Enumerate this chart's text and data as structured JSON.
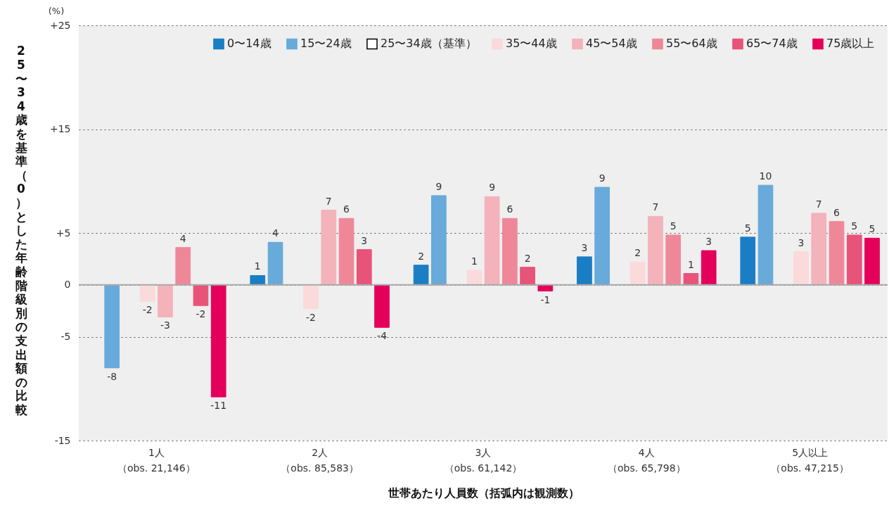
{
  "chart_data": {
    "type": "bar",
    "ylabel": "25〜34歳を基準（0）とした年齢階級別の支出額の比較",
    "xlabel": "世帯あたり人員数（括弧内は観測数）",
    "annotations": [
      "(%)"
    ],
    "categories": [
      "1人（obs. 21,146）",
      "2人（obs. 85,583）",
      "3人（obs. 61,142）",
      "4人（obs. 65,798）",
      "5人以上（obs. 47,215）"
    ],
    "ylim": [
      -15,
      25
    ],
    "yticks": [
      {
        "value": 25,
        "label": "+25"
      },
      {
        "value": 15,
        "label": "+15"
      },
      {
        "value": 5,
        "label": "+5"
      },
      0,
      -5,
      -15
    ],
    "grid": "y",
    "legend": "top right",
    "ref_lines": [
      {
        "axis": "y",
        "value": 0,
        "color": "#aaaaaa"
      }
    ],
    "series": [
      {
        "name": "0〜14歳",
        "color": "#1a7ec4",
        "values": [
          null,
          0.9,
          1.9,
          2.7,
          4.6
        ],
        "value_labels": [
          null,
          "1",
          "2",
          "3",
          "5"
        ]
      },
      {
        "name": "15〜24歳",
        "color": "#68aad9",
        "values": [
          -8.0,
          4.1,
          8.6,
          9.4,
          9.6
        ],
        "value_labels": [
          "-8",
          "4",
          "9",
          "9",
          "10"
        ]
      },
      {
        "name": "25〜34歳（基準）",
        "color": "#ffffff",
        "values": [
          null,
          null,
          null,
          null,
          null
        ],
        "value_labels": [
          null,
          null,
          null,
          null,
          null
        ]
      },
      {
        "name": "35〜44歳",
        "color": "#fadada",
        "values": [
          -1.6,
          -2.3,
          1.4,
          2.2,
          3.2
        ],
        "value_labels": [
          "-2",
          "-2",
          "1",
          "2",
          "3"
        ]
      },
      {
        "name": "45〜54歳",
        "color": "#f4b2bb",
        "values": [
          -3.1,
          7.2,
          8.5,
          6.6,
          6.9
        ],
        "value_labels": [
          "-3",
          "7",
          "9",
          "7",
          "7"
        ]
      },
      {
        "name": "55〜64歳",
        "color": "#ee8898",
        "values": [
          3.6,
          6.4,
          6.4,
          4.8,
          6.1
        ],
        "value_labels": [
          "4",
          "6",
          "6",
          "5",
          "6"
        ]
      },
      {
        "name": "65〜74歳",
        "color": "#e85379",
        "values": [
          -2.0,
          3.4,
          1.7,
          1.1,
          4.8
        ],
        "value_labels": [
          "-2",
          "3",
          "2",
          "1",
          "5"
        ]
      },
      {
        "name": "75歳以上",
        "color": "#e4005a",
        "values": [
          -10.8,
          -4.1,
          -0.6,
          3.3,
          4.5
        ],
        "value_labels": [
          "-11",
          "-4",
          "-1",
          "3",
          "5"
        ]
      }
    ]
  }
}
